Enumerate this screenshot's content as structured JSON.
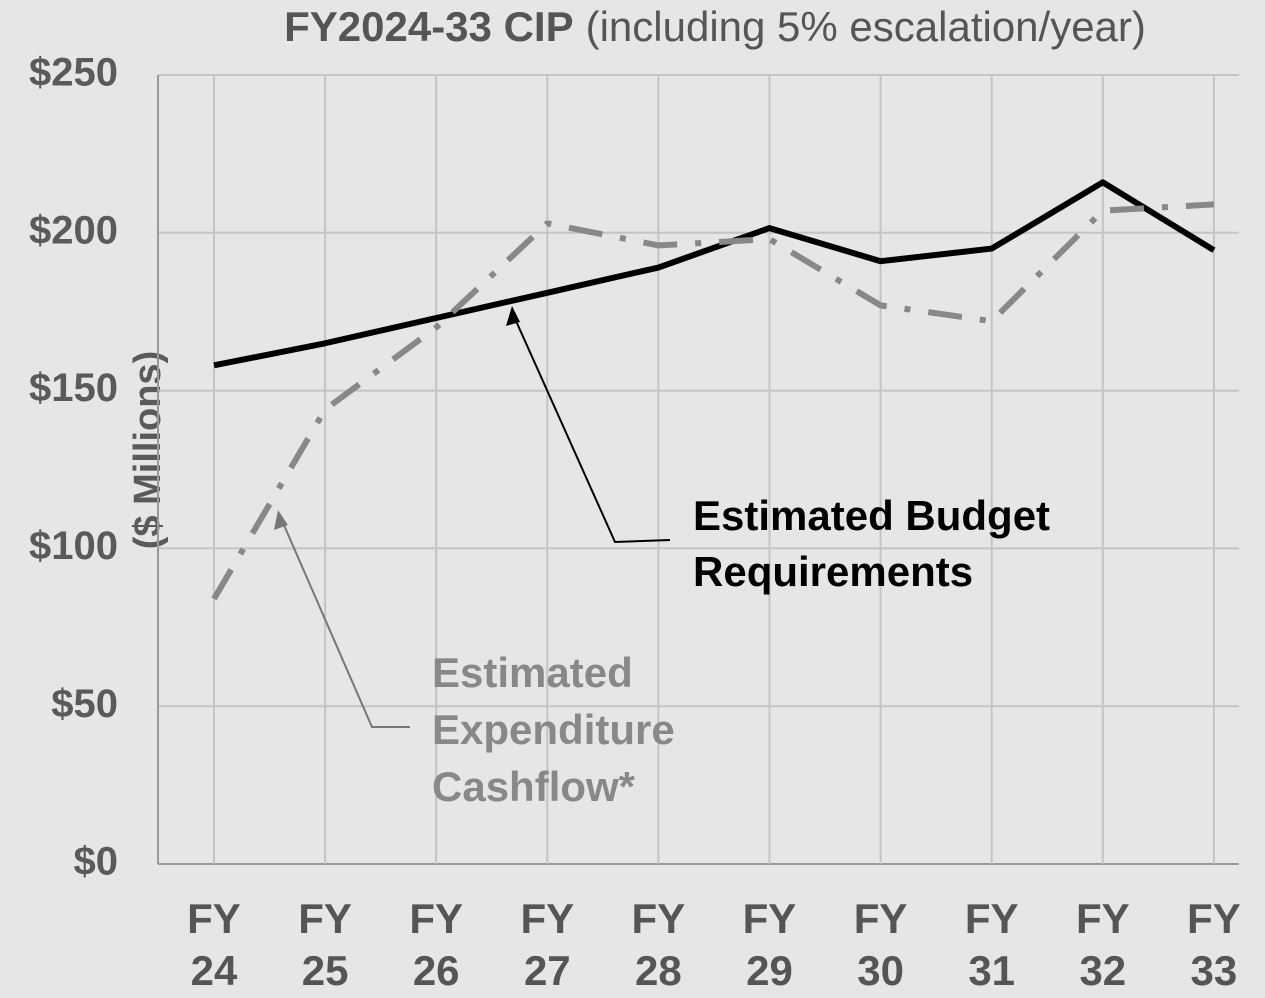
{
  "chart_data": {
    "type": "line",
    "title": "FY2024-33 CIP",
    "subtitle": "(including 5% escalation/year)",
    "y_label": "($ Millions)",
    "categories": [
      "FY\n24",
      "FY\n25",
      "FY\n26",
      "FY\n27",
      "FY\n28",
      "FY\n29",
      "FY\n30",
      "FY\n31",
      "FY\n32",
      "FY\n33"
    ],
    "series": [
      {
        "name": "Estimated Budget\nRequirements",
        "color": "#000000",
        "dash": "solid",
        "values": [
          158,
          165,
          173,
          181,
          189,
          201.5,
          191,
          195,
          216,
          194.5
        ]
      },
      {
        "name": "Estimated\nExpenditure\nCashflow*",
        "color": "#888888",
        "dash": "dash-dot",
        "values": [
          84,
          144,
          170,
          203,
          196,
          198,
          177,
          172,
          207,
          209
        ]
      }
    ],
    "ylim": [
      0,
      250
    ],
    "yticks": [
      {
        "value": 0,
        "label": "$0"
      },
      {
        "value": 50,
        "label": "$50"
      },
      {
        "value": 100,
        "label": "$100"
      },
      {
        "value": 150,
        "label": "$150"
      },
      {
        "value": 200,
        "label": "$200"
      },
      {
        "value": 250,
        "label": "$250"
      }
    ],
    "grid": true
  }
}
